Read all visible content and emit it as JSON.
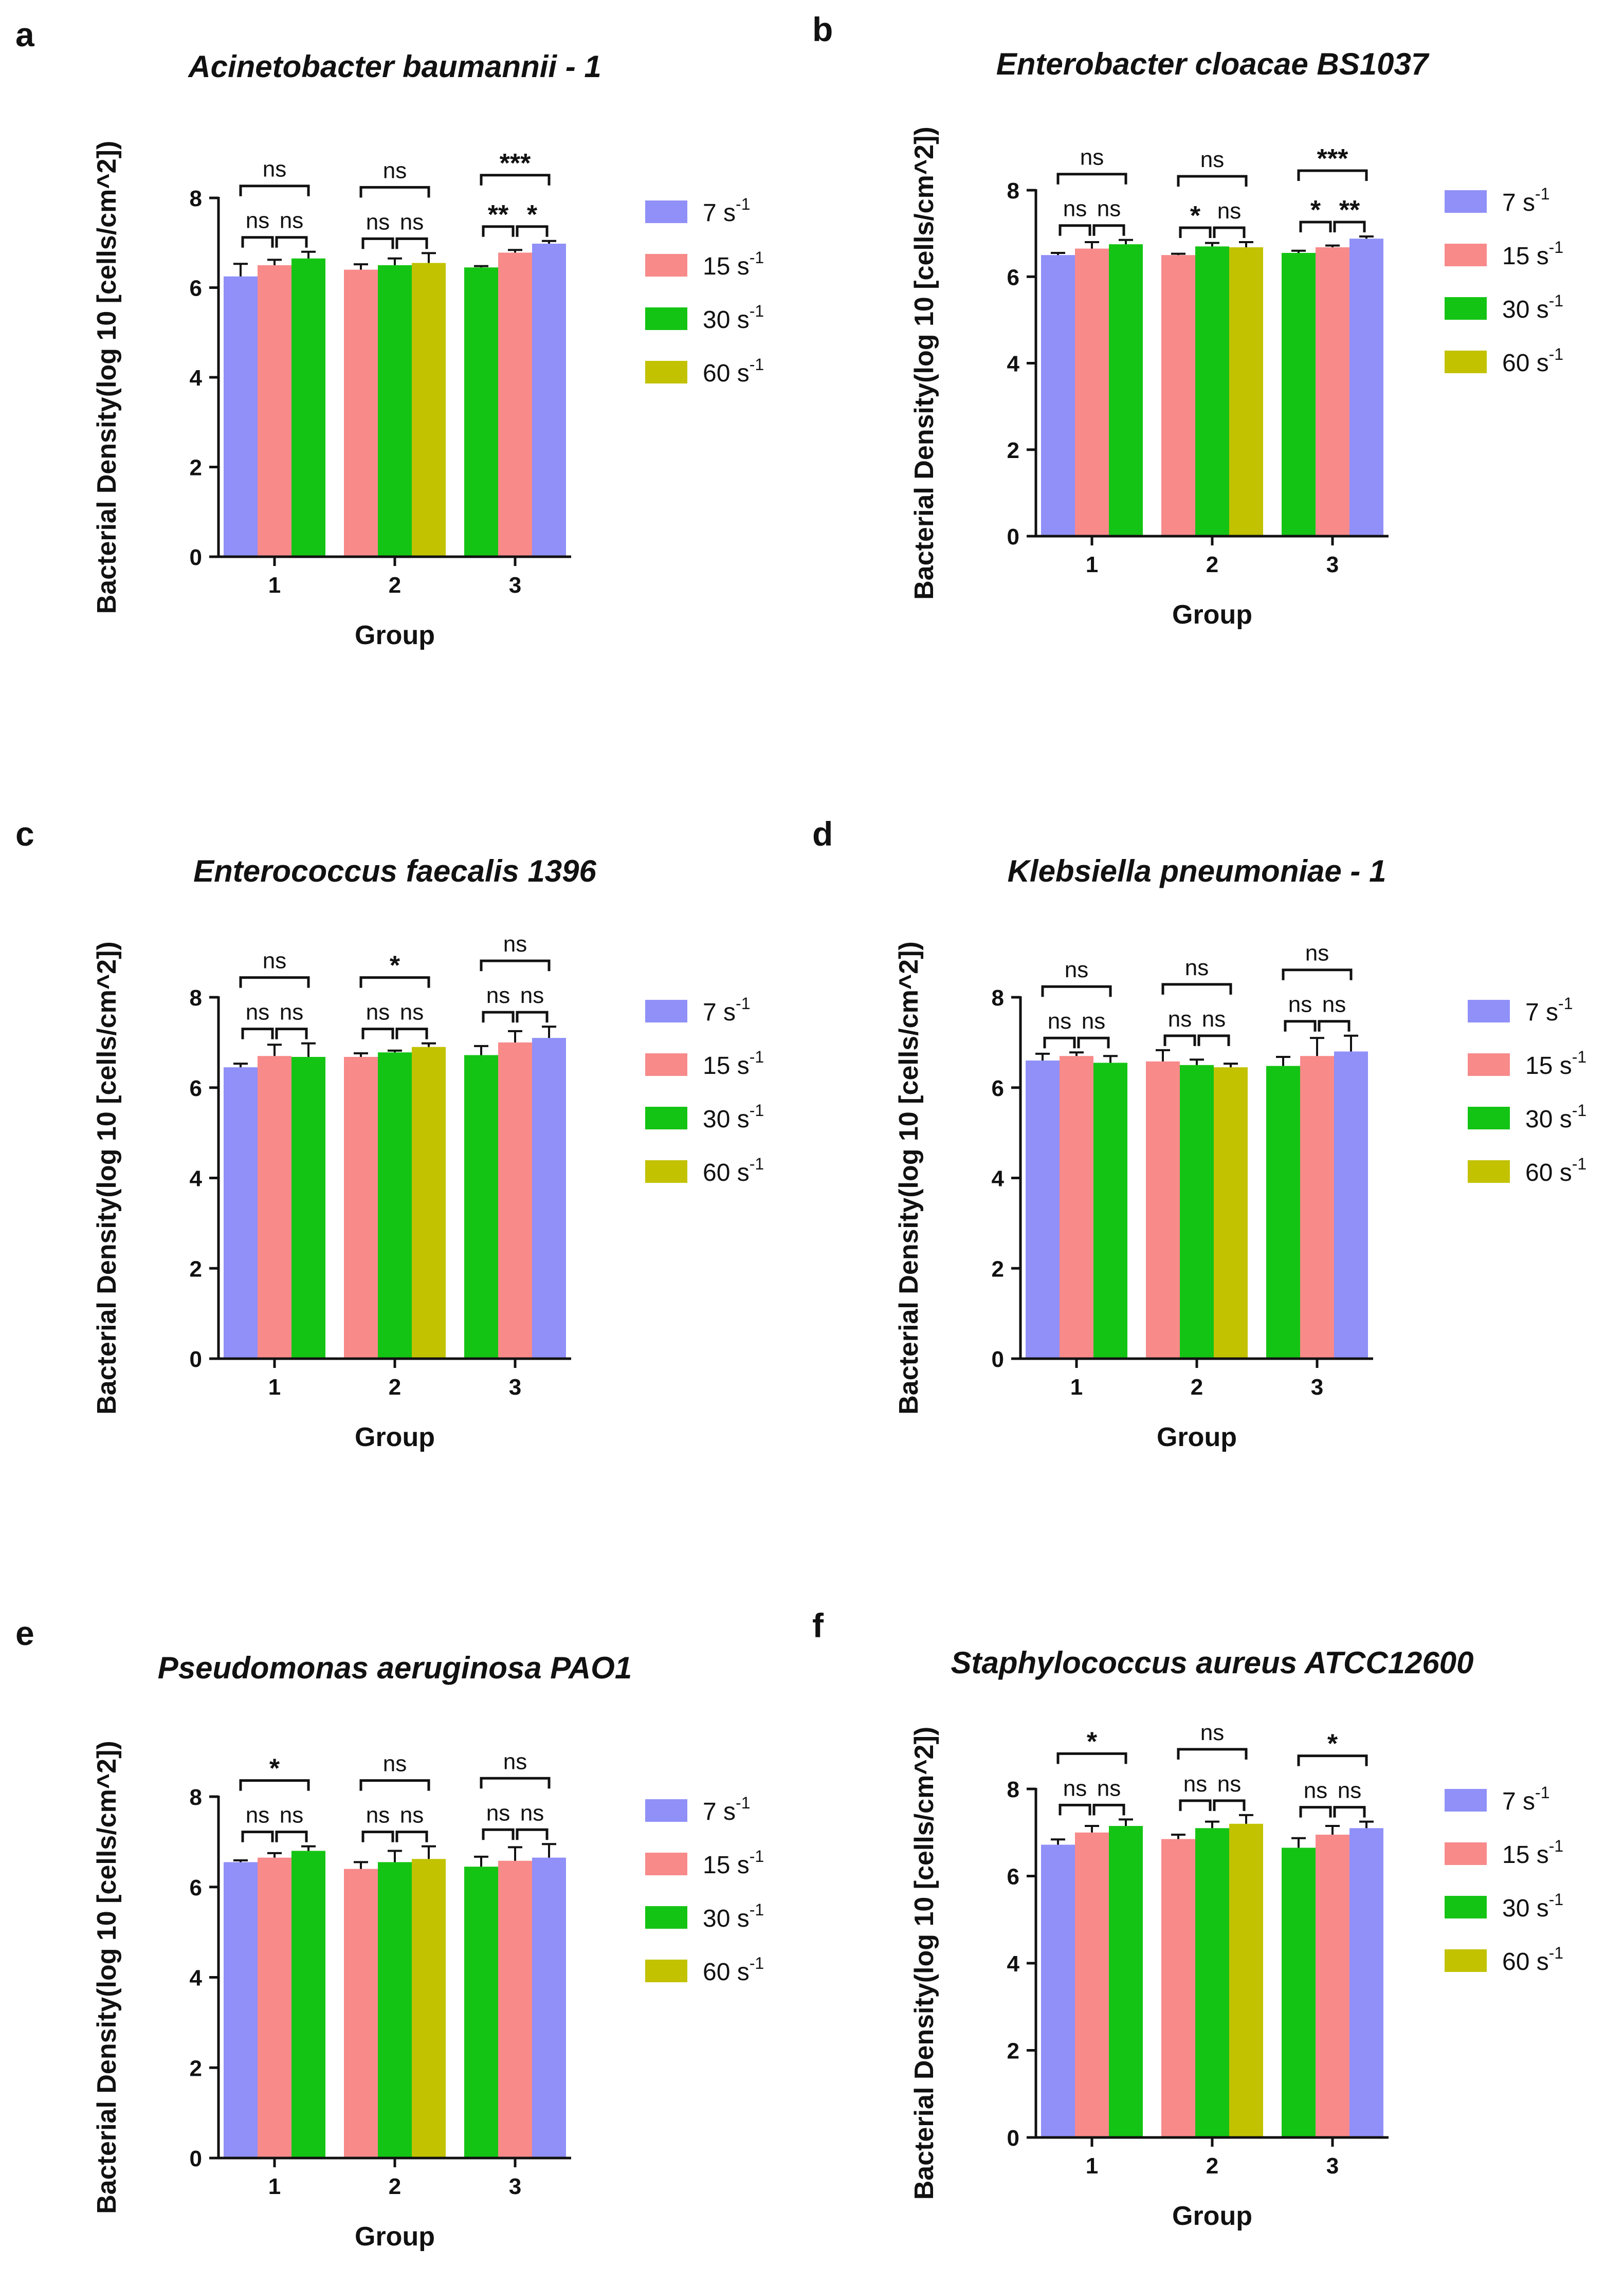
{
  "colors": {
    "7": "#9090f8",
    "15": "#f88a8a",
    "30": "#14c414",
    "60": "#c2c200",
    "axis": "#111111"
  },
  "legend": [
    {
      "key": "7",
      "label": "7 s",
      "sup": "-1"
    },
    {
      "key": "15",
      "label": "15 s",
      "sup": "-1"
    },
    {
      "key": "30",
      "label": "30 s",
      "sup": "-1"
    },
    {
      "key": "60",
      "label": "60 s",
      "sup": "-1"
    }
  ],
  "chart_data": [
    {
      "letter": "a",
      "title": "Acinetobacter baumannii - 1",
      "type": "bar",
      "xlabel": "Group",
      "ylabel": "Bacterial Density(log 10 [cells/cm^2])",
      "ylim": [
        0,
        8
      ],
      "yticks": [
        "0",
        "2",
        "4",
        "6",
        "8"
      ],
      "groups": [
        {
          "label": "1",
          "bars": [
            {
              "rate": "7",
              "value": 6.25,
              "err": 0.28
            },
            {
              "rate": "15",
              "value": 6.5,
              "err": 0.12
            },
            {
              "rate": "30",
              "value": 6.65,
              "err": 0.15
            }
          ],
          "sig": [
            {
              "from": 0,
              "to": 1,
              "text": "ns"
            },
            {
              "from": 1,
              "to": 2,
              "text": "ns"
            },
            {
              "from": 0,
              "to": 2,
              "text": "ns"
            }
          ]
        },
        {
          "label": "2",
          "bars": [
            {
              "rate": "15",
              "value": 6.4,
              "err": 0.12
            },
            {
              "rate": "30",
              "value": 6.5,
              "err": 0.15
            },
            {
              "rate": "60",
              "value": 6.55,
              "err": 0.22
            }
          ],
          "sig": [
            {
              "from": 0,
              "to": 1,
              "text": "ns"
            },
            {
              "from": 1,
              "to": 2,
              "text": "ns"
            },
            {
              "from": 0,
              "to": 2,
              "text": "ns"
            }
          ]
        },
        {
          "label": "3",
          "bars": [
            {
              "rate": "30",
              "value": 6.45,
              "err": 0.03
            },
            {
              "rate": "15",
              "value": 6.78,
              "err": 0.06
            },
            {
              "rate": "7",
              "value": 6.98,
              "err": 0.06
            }
          ],
          "sig": [
            {
              "from": 0,
              "to": 1,
              "text": "**"
            },
            {
              "from": 1,
              "to": 2,
              "text": "*"
            },
            {
              "from": 0,
              "to": 2,
              "text": "***"
            }
          ]
        }
      ]
    },
    {
      "letter": "b",
      "title": "Enterobacter cloacae BS1037",
      "type": "bar",
      "xlabel": "Group",
      "ylabel": "Bacterial Density(log 10 [cells/cm^2])",
      "ylim": [
        0,
        8
      ],
      "yticks": [
        "0",
        "2",
        "4",
        "6",
        "8"
      ],
      "groups": [
        {
          "label": "1",
          "bars": [
            {
              "rate": "7",
              "value": 6.5,
              "err": 0.05
            },
            {
              "rate": "15",
              "value": 6.65,
              "err": 0.15
            },
            {
              "rate": "30",
              "value": 6.75,
              "err": 0.1
            }
          ],
          "sig": [
            {
              "from": 0,
              "to": 1,
              "text": "ns"
            },
            {
              "from": 1,
              "to": 2,
              "text": "ns"
            },
            {
              "from": 0,
              "to": 2,
              "text": "ns"
            }
          ]
        },
        {
          "label": "2",
          "bars": [
            {
              "rate": "15",
              "value": 6.5,
              "err": 0.03
            },
            {
              "rate": "30",
              "value": 6.7,
              "err": 0.08
            },
            {
              "rate": "60",
              "value": 6.68,
              "err": 0.12
            }
          ],
          "sig": [
            {
              "from": 0,
              "to": 1,
              "text": "*"
            },
            {
              "from": 1,
              "to": 2,
              "text": "ns"
            },
            {
              "from": 0,
              "to": 2,
              "text": "ns"
            }
          ]
        },
        {
          "label": "3",
          "bars": [
            {
              "rate": "30",
              "value": 6.55,
              "err": 0.05
            },
            {
              "rate": "15",
              "value": 6.68,
              "err": 0.04
            },
            {
              "rate": "7",
              "value": 6.88,
              "err": 0.05
            }
          ],
          "sig": [
            {
              "from": 0,
              "to": 1,
              "text": "*"
            },
            {
              "from": 1,
              "to": 2,
              "text": "**"
            },
            {
              "from": 0,
              "to": 2,
              "text": "***"
            }
          ]
        }
      ]
    },
    {
      "letter": "c",
      "title": "Enterococcus faecalis 1396",
      "type": "bar",
      "xlabel": "Group",
      "ylabel": "Bacterial Density(log 10 [cells/cm^2])",
      "ylim": [
        0,
        8
      ],
      "yticks": [
        "0",
        "2",
        "4",
        "6",
        "8"
      ],
      "groups": [
        {
          "label": "1",
          "bars": [
            {
              "rate": "7",
              "value": 6.45,
              "err": 0.08
            },
            {
              "rate": "15",
              "value": 6.7,
              "err": 0.25
            },
            {
              "rate": "30",
              "value": 6.68,
              "err": 0.3
            }
          ],
          "sig": [
            {
              "from": 0,
              "to": 1,
              "text": "ns"
            },
            {
              "from": 1,
              "to": 2,
              "text": "ns"
            },
            {
              "from": 0,
              "to": 2,
              "text": "ns"
            }
          ]
        },
        {
          "label": "2",
          "bars": [
            {
              "rate": "15",
              "value": 6.68,
              "err": 0.08
            },
            {
              "rate": "30",
              "value": 6.78,
              "err": 0.04
            },
            {
              "rate": "60",
              "value": 6.9,
              "err": 0.08
            }
          ],
          "sig": [
            {
              "from": 0,
              "to": 1,
              "text": "ns"
            },
            {
              "from": 1,
              "to": 2,
              "text": "ns"
            },
            {
              "from": 0,
              "to": 2,
              "text": "*"
            }
          ]
        },
        {
          "label": "3",
          "bars": [
            {
              "rate": "30",
              "value": 6.72,
              "err": 0.2
            },
            {
              "rate": "15",
              "value": 7.0,
              "err": 0.25
            },
            {
              "rate": "7",
              "value": 7.1,
              "err": 0.25
            }
          ],
          "sig": [
            {
              "from": 0,
              "to": 1,
              "text": "ns"
            },
            {
              "from": 1,
              "to": 2,
              "text": "ns"
            },
            {
              "from": 0,
              "to": 2,
              "text": "ns"
            }
          ]
        }
      ]
    },
    {
      "letter": "d",
      "title": "Klebsiella pneumoniae - 1",
      "type": "bar",
      "xlabel": "Group",
      "ylabel": "Bacterial Density(log 10 [cells/cm^2])",
      "ylim": [
        0,
        8
      ],
      "yticks": [
        "0",
        "2",
        "4",
        "6",
        "8"
      ],
      "groups": [
        {
          "label": "1",
          "bars": [
            {
              "rate": "7",
              "value": 6.6,
              "err": 0.15
            },
            {
              "rate": "15",
              "value": 6.7,
              "err": 0.08
            },
            {
              "rate": "30",
              "value": 6.55,
              "err": 0.15
            }
          ],
          "sig": [
            {
              "from": 0,
              "to": 1,
              "text": "ns"
            },
            {
              "from": 1,
              "to": 2,
              "text": "ns"
            },
            {
              "from": 0,
              "to": 2,
              "text": "ns"
            }
          ]
        },
        {
          "label": "2",
          "bars": [
            {
              "rate": "15",
              "value": 6.58,
              "err": 0.25
            },
            {
              "rate": "30",
              "value": 6.5,
              "err": 0.12
            },
            {
              "rate": "60",
              "value": 6.45,
              "err": 0.08
            }
          ],
          "sig": [
            {
              "from": 0,
              "to": 1,
              "text": "ns"
            },
            {
              "from": 1,
              "to": 2,
              "text": "ns"
            },
            {
              "from": 0,
              "to": 2,
              "text": "ns"
            }
          ]
        },
        {
          "label": "3",
          "bars": [
            {
              "rate": "30",
              "value": 6.48,
              "err": 0.2
            },
            {
              "rate": "15",
              "value": 6.7,
              "err": 0.4
            },
            {
              "rate": "7",
              "value": 6.8,
              "err": 0.35
            }
          ],
          "sig": [
            {
              "from": 0,
              "to": 1,
              "text": "ns"
            },
            {
              "from": 1,
              "to": 2,
              "text": "ns"
            },
            {
              "from": 0,
              "to": 2,
              "text": "ns"
            }
          ]
        }
      ]
    },
    {
      "letter": "e",
      "title": "Pseudomonas aeruginosa PAO1",
      "type": "bar",
      "xlabel": "Group",
      "ylabel": "Bacterial Density(log 10 [cells/cm^2])",
      "ylim": [
        0,
        8
      ],
      "yticks": [
        "0",
        "2",
        "4",
        "6",
        "8"
      ],
      "groups": [
        {
          "label": "1",
          "bars": [
            {
              "rate": "7",
              "value": 6.55,
              "err": 0.04
            },
            {
              "rate": "15",
              "value": 6.65,
              "err": 0.1
            },
            {
              "rate": "30",
              "value": 6.8,
              "err": 0.1
            }
          ],
          "sig": [
            {
              "from": 0,
              "to": 1,
              "text": "ns"
            },
            {
              "from": 1,
              "to": 2,
              "text": "ns"
            },
            {
              "from": 0,
              "to": 2,
              "text": "*"
            }
          ]
        },
        {
          "label": "2",
          "bars": [
            {
              "rate": "15",
              "value": 6.4,
              "err": 0.15
            },
            {
              "rate": "30",
              "value": 6.55,
              "err": 0.25
            },
            {
              "rate": "60",
              "value": 6.62,
              "err": 0.28
            }
          ],
          "sig": [
            {
              "from": 0,
              "to": 1,
              "text": "ns"
            },
            {
              "from": 1,
              "to": 2,
              "text": "ns"
            },
            {
              "from": 0,
              "to": 2,
              "text": "ns"
            }
          ]
        },
        {
          "label": "3",
          "bars": [
            {
              "rate": "30",
              "value": 6.45,
              "err": 0.22
            },
            {
              "rate": "15",
              "value": 6.58,
              "err": 0.3
            },
            {
              "rate": "7",
              "value": 6.65,
              "err": 0.3
            }
          ],
          "sig": [
            {
              "from": 0,
              "to": 1,
              "text": "ns"
            },
            {
              "from": 1,
              "to": 2,
              "text": "ns"
            },
            {
              "from": 0,
              "to": 2,
              "text": "ns"
            }
          ]
        }
      ]
    },
    {
      "letter": "f",
      "title": "Staphylococcus aureus ATCC12600",
      "type": "bar",
      "xlabel": "Group",
      "ylabel": "Bacterial Density(log 10 [cells/cm^2])",
      "ylim": [
        0,
        8
      ],
      "yticks": [
        "0",
        "2",
        "4",
        "6",
        "8"
      ],
      "groups": [
        {
          "label": "1",
          "bars": [
            {
              "rate": "7",
              "value": 6.72,
              "err": 0.12
            },
            {
              "rate": "15",
              "value": 7.0,
              "err": 0.15
            },
            {
              "rate": "30",
              "value": 7.15,
              "err": 0.15
            }
          ],
          "sig": [
            {
              "from": 0,
              "to": 1,
              "text": "ns"
            },
            {
              "from": 1,
              "to": 2,
              "text": "ns"
            },
            {
              "from": 0,
              "to": 2,
              "text": "*"
            }
          ]
        },
        {
          "label": "2",
          "bars": [
            {
              "rate": "15",
              "value": 6.85,
              "err": 0.1
            },
            {
              "rate": "30",
              "value": 7.1,
              "err": 0.15
            },
            {
              "rate": "60",
              "value": 7.2,
              "err": 0.2
            }
          ],
          "sig": [
            {
              "from": 0,
              "to": 1,
              "text": "ns"
            },
            {
              "from": 1,
              "to": 2,
              "text": "ns"
            },
            {
              "from": 0,
              "to": 2,
              "text": "ns"
            }
          ]
        },
        {
          "label": "3",
          "bars": [
            {
              "rate": "30",
              "value": 6.65,
              "err": 0.22
            },
            {
              "rate": "15",
              "value": 6.95,
              "err": 0.2
            },
            {
              "rate": "7",
              "value": 7.1,
              "err": 0.15
            }
          ],
          "sig": [
            {
              "from": 0,
              "to": 1,
              "text": "ns"
            },
            {
              "from": 1,
              "to": 2,
              "text": "ns"
            },
            {
              "from": 0,
              "to": 2,
              "text": "*"
            }
          ]
        }
      ]
    }
  ]
}
